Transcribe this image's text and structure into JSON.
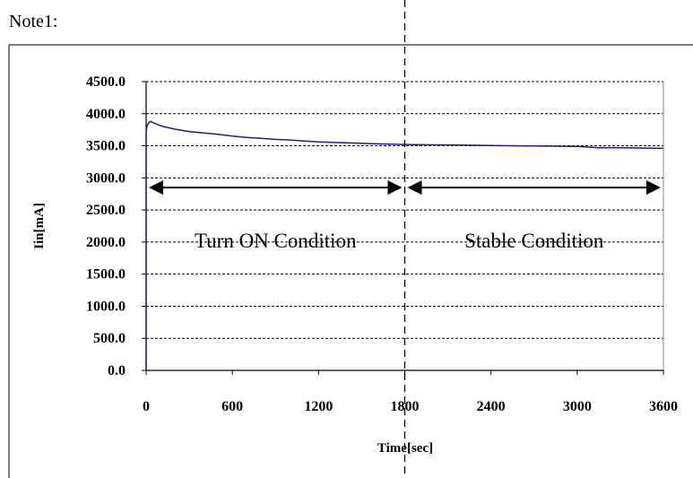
{
  "note": "Note1:",
  "chart_data": {
    "type": "line",
    "title": "",
    "xlabel": "Time[sec]",
    "ylabel": "Iin[mA]",
    "xlim": [
      0,
      3600
    ],
    "ylim": [
      0,
      4500
    ],
    "x_ticks": [
      "0",
      "600",
      "1200",
      "1800",
      "2400",
      "3000",
      "3600"
    ],
    "y_ticks": [
      "0.0",
      "500.0",
      "1000.0",
      "1500.0",
      "2000.0",
      "2500.0",
      "3000.0",
      "3500.0",
      "4000.0",
      "4500.0"
    ],
    "grid": "horizontal-dashed",
    "line_color": "#1f1f7a",
    "series": [
      {
        "x": [
          0,
          5,
          15,
          30,
          50,
          80,
          120,
          200,
          300,
          400,
          500,
          600,
          700,
          800,
          900,
          1000,
          1100,
          1200,
          1400,
          1600,
          1800,
          2000,
          2200,
          2400,
          2600,
          2800,
          3000,
          3150,
          3300,
          3450,
          3600
        ],
        "y": [
          3700,
          3800,
          3850,
          3880,
          3860,
          3830,
          3800,
          3760,
          3720,
          3700,
          3680,
          3650,
          3630,
          3615,
          3600,
          3590,
          3575,
          3560,
          3545,
          3530,
          3520,
          3515,
          3510,
          3505,
          3500,
          3495,
          3490,
          3470,
          3470,
          3465,
          3460
        ]
      }
    ],
    "annotations": {
      "divider_x": 1800,
      "arrow_level": 2850,
      "regions": [
        {
          "label": "Turn ON Condition",
          "from": 0,
          "to": 1800
        },
        {
          "label": "Stable Condition",
          "from": 1800,
          "to": 3600
        }
      ]
    }
  }
}
